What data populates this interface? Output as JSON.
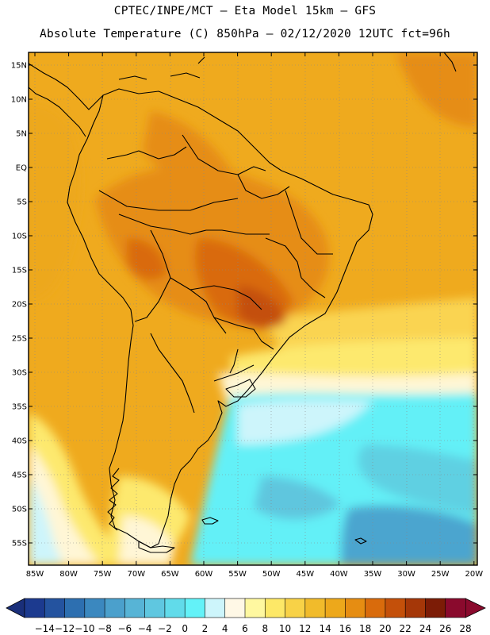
{
  "header": {
    "line1": "CPTEC/INPE/MCT –  Eta Model 15km – GFS",
    "line2": "Absolute Temperature (C) 850hPa – 02/12/2020 12UTC fct=96h"
  },
  "map": {
    "lat_labels": [
      "15N",
      "10N",
      "5N",
      "EQ",
      "5S",
      "10S",
      "15S",
      "20S",
      "25S",
      "30S",
      "35S",
      "40S",
      "45S",
      "50S",
      "55S"
    ],
    "lon_labels": [
      "85W",
      "80W",
      "75W",
      "70W",
      "65W",
      "60W",
      "55W",
      "50W",
      "45W",
      "40W",
      "35W",
      "30W",
      "25W",
      "20W"
    ]
  },
  "colorbar": {
    "labels": [
      "-14",
      "-12",
      "-10",
      "-8",
      "-6",
      "-4",
      "-2",
      "0",
      "2",
      "4",
      "6",
      "8",
      "10",
      "12",
      "14",
      "16",
      "18",
      "20",
      "22",
      "24",
      "26",
      "28"
    ],
    "colors": [
      "#1c3a8f",
      "#24539f",
      "#2d6fb0",
      "#3b88bf",
      "#4ba0cc",
      "#57b4d6",
      "#5fc7e0",
      "#61dbea",
      "#63f2f8",
      "#cdf5fb",
      "#fff8e6",
      "#fff8a0",
      "#fde867",
      "#f8d247",
      "#f1bb2b",
      "#eda81b",
      "#e68d12",
      "#d96b0c",
      "#c4500a",
      "#a53708",
      "#7c1c06",
      "#8a0a2d"
    ],
    "under_color": "#1a2f7a",
    "over_color": "#8a0a2d"
  }
}
